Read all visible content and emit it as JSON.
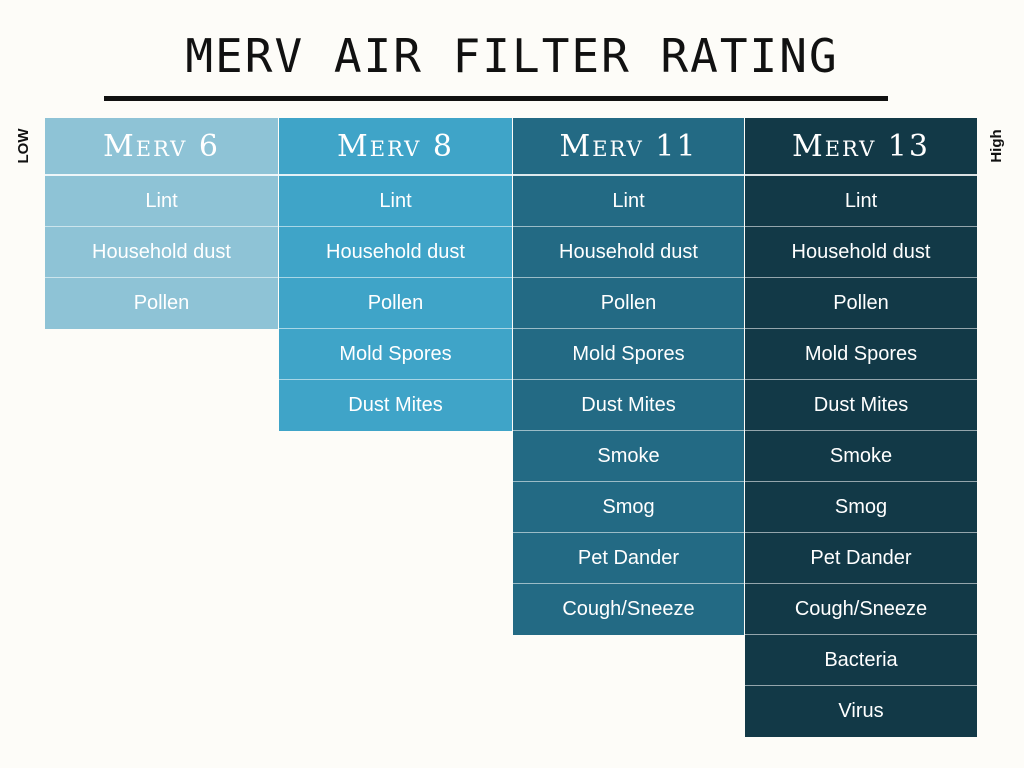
{
  "title": "MERV AIR FILTER RATING",
  "side_labels": {
    "low": "LOW",
    "high": "High"
  },
  "colors": {
    "merv6": "#8ec3d6",
    "merv8": "#3fa4c8",
    "merv11": "#236a84",
    "merv13": "#123947"
  },
  "columns": [
    {
      "label": "Merv 6",
      "items": [
        "Lint",
        "Household dust",
        "Pollen"
      ]
    },
    {
      "label": "Merv 8",
      "items": [
        "Lint",
        "Household dust",
        "Pollen",
        "Mold Spores",
        "Dust Mites"
      ]
    },
    {
      "label": "Merv 11",
      "items": [
        "Lint",
        "Household dust",
        "Pollen",
        "Mold Spores",
        "Dust Mites",
        "Smoke",
        "Smog",
        "Pet Dander",
        "Cough/Sneeze"
      ]
    },
    {
      "label": "Merv 13",
      "items": [
        "Lint",
        "Household dust",
        "Pollen",
        "Mold Spores",
        "Dust Mites",
        "Smoke",
        "Smog",
        "Pet Dander",
        "Cough/Sneeze",
        "Bacteria",
        "Virus"
      ]
    }
  ]
}
